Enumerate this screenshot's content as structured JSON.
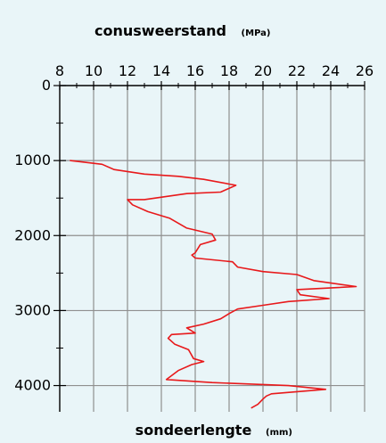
{
  "colors": {
    "background": "#e9f5f8",
    "grid": "#8f8f8f",
    "axis": "#000000",
    "line": "#e8191b"
  },
  "chart_data": {
    "type": "line",
    "title": "conusweerstand",
    "title_unit": "(MPa)",
    "xlabel": "sondeerlengte",
    "xlabel_unit": "(mm)",
    "x_axis_position": "top",
    "y_axis_inverted": true,
    "xlim": [
      8,
      26
    ],
    "ylim": [
      0,
      4350
    ],
    "x_ticks": [
      8,
      10,
      12,
      14,
      16,
      18,
      20,
      22,
      24,
      26
    ],
    "y_ticks": [
      0,
      1000,
      2000,
      3000,
      4000
    ],
    "y_minor_step": 500,
    "x_minor_step": 1,
    "grid": true,
    "series": [
      {
        "points": [
          [
            8.6,
            1000
          ],
          [
            10.5,
            1050
          ],
          [
            11.2,
            1120
          ],
          [
            13.0,
            1180
          ],
          [
            15.0,
            1210
          ],
          [
            16.5,
            1250
          ],
          [
            18.4,
            1330
          ],
          [
            17.5,
            1420
          ],
          [
            15.5,
            1440
          ],
          [
            13.0,
            1520
          ],
          [
            12.0,
            1520
          ],
          [
            12.3,
            1590
          ],
          [
            13.2,
            1680
          ],
          [
            14.5,
            1770
          ],
          [
            15.5,
            1900
          ],
          [
            17.0,
            1980
          ],
          [
            17.2,
            2060
          ],
          [
            16.3,
            2120
          ],
          [
            16.0,
            2230
          ],
          [
            15.8,
            2260
          ],
          [
            16.0,
            2300
          ],
          [
            18.2,
            2350
          ],
          [
            18.5,
            2420
          ],
          [
            20.0,
            2480
          ],
          [
            22.0,
            2520
          ],
          [
            23.0,
            2600
          ],
          [
            25.5,
            2680
          ],
          [
            22.0,
            2720
          ],
          [
            22.2,
            2790
          ],
          [
            23.9,
            2840
          ],
          [
            21.5,
            2880
          ],
          [
            20.0,
            2930
          ],
          [
            18.5,
            2980
          ],
          [
            18.0,
            3040
          ],
          [
            17.5,
            3110
          ],
          [
            16.5,
            3180
          ],
          [
            15.5,
            3230
          ],
          [
            16.0,
            3300
          ],
          [
            14.6,
            3320
          ],
          [
            14.4,
            3370
          ],
          [
            14.8,
            3450
          ],
          [
            15.6,
            3520
          ],
          [
            15.7,
            3560
          ],
          [
            15.9,
            3640
          ],
          [
            16.5,
            3680
          ],
          [
            15.8,
            3720
          ],
          [
            15.0,
            3800
          ],
          [
            14.3,
            3920
          ],
          [
            17.0,
            3960
          ],
          [
            21.5,
            4000
          ],
          [
            23.7,
            4050
          ],
          [
            20.5,
            4110
          ],
          [
            20.2,
            4140
          ],
          [
            20.0,
            4180
          ],
          [
            19.7,
            4250
          ],
          [
            19.3,
            4300
          ]
        ]
      }
    ]
  }
}
